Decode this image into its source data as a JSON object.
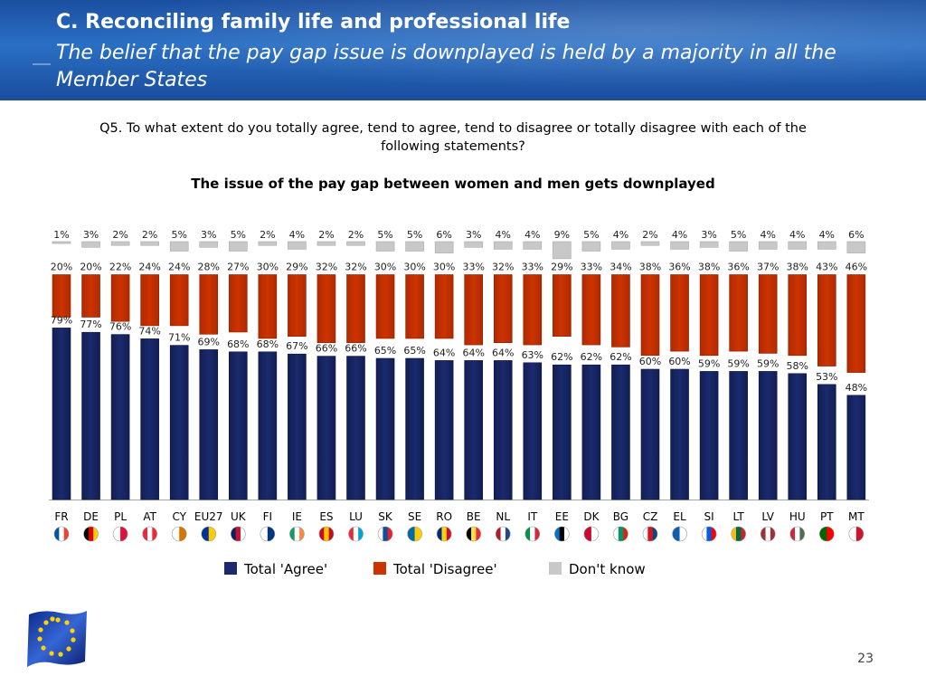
{
  "header": {
    "title": "C. Reconciling family life and professional life",
    "subtitle": "The belief that the pay gap issue is downplayed is held by a majority in all the Member States"
  },
  "question": "Q5. To what extent do you totally agree, tend to agree, tend to disagree or totally disagree with each of the following statements?",
  "statement": "The issue of the pay gap between women and men gets downplayed",
  "page_number": "23",
  "colors": {
    "agree": "#1a2a6c",
    "disagree": "#cc3300",
    "dontknow": "#c8c8c8",
    "header": "#1f5aa8"
  },
  "chart_data": {
    "type": "bar",
    "categories": [
      "FR",
      "DE",
      "PL",
      "AT",
      "CY",
      "EU27",
      "UK",
      "FI",
      "IE",
      "ES",
      "LU",
      "SK",
      "SE",
      "RO",
      "BE",
      "NL",
      "IT",
      "EE",
      "DK",
      "BG",
      "CZ",
      "EL",
      "SI",
      "LT",
      "LV",
      "HU",
      "PT",
      "MT"
    ],
    "series": [
      {
        "name": "Total 'Agree'",
        "values": [
          79,
          77,
          76,
          74,
          71,
          69,
          68,
          68,
          67,
          66,
          66,
          65,
          65,
          64,
          64,
          64,
          63,
          62,
          62,
          62,
          60,
          60,
          59,
          59,
          59,
          58,
          53,
          48
        ]
      },
      {
        "name": "Total 'Disagree'",
        "values": [
          20,
          20,
          22,
          24,
          24,
          28,
          27,
          30,
          29,
          32,
          32,
          30,
          30,
          30,
          33,
          32,
          33,
          29,
          33,
          34,
          38,
          36,
          38,
          36,
          37,
          38,
          43,
          46
        ]
      },
      {
        "name": "Don't know",
        "values": [
          1,
          3,
          2,
          2,
          5,
          3,
          5,
          2,
          4,
          2,
          2,
          5,
          5,
          6,
          3,
          4,
          4,
          9,
          5,
          4,
          2,
          4,
          3,
          5,
          4,
          4,
          4,
          6
        ]
      }
    ],
    "value_suffix": "%",
    "legend_position": "bottom",
    "grid": false
  },
  "flags": {
    "FR": "flag-france-icon",
    "DE": "flag-germany-icon",
    "PL": "flag-poland-icon",
    "AT": "flag-austria-icon",
    "CY": "flag-cyprus-icon",
    "EU27": "flag-eu-icon",
    "UK": "flag-uk-icon",
    "FI": "flag-finland-icon",
    "IE": "flag-ireland-icon",
    "ES": "flag-spain-icon",
    "LU": "flag-luxembourg-icon",
    "SK": "flag-slovakia-icon",
    "SE": "flag-sweden-icon",
    "RO": "flag-romania-icon",
    "BE": "flag-belgium-icon",
    "NL": "flag-netherlands-icon",
    "IT": "flag-italy-icon",
    "EE": "flag-estonia-icon",
    "DK": "flag-denmark-icon",
    "BG": "flag-bulgaria-icon",
    "CZ": "flag-czech-icon",
    "EL": "flag-greece-icon",
    "SI": "flag-slovenia-icon",
    "LT": "flag-lithuania-icon",
    "LV": "flag-latvia-icon",
    "HU": "flag-hungary-icon",
    "PT": "flag-portugal-icon",
    "MT": "flag-malta-icon"
  }
}
